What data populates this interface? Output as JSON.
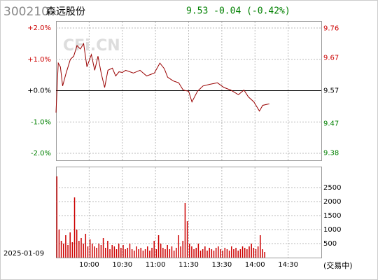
{
  "header": {
    "code": "300210",
    "name": "森远股份",
    "quote": "9.53 -0.04 (-0.42%)"
  },
  "watermark": "CFi.CN",
  "date": "2025-01-09",
  "status": "(交易中)",
  "chart_data": [
    {
      "type": "line",
      "xlim": [
        0,
        240
      ],
      "xticks": [
        30,
        60,
        90,
        120,
        150,
        180,
        210
      ],
      "ylim": [
        -2,
        2
      ],
      "yticks": [
        {
          "value": 2,
          "label": "+2.0%"
        },
        {
          "value": 1,
          "label": "+1.0%"
        },
        {
          "value": 0,
          "label": "+0.0%"
        },
        {
          "value": -1,
          "label": "-1.0%"
        },
        {
          "value": -2,
          "label": "-2.0%"
        }
      ],
      "y2lim": [
        9.3786,
        9.7614
      ],
      "y2ticks": [
        9.76,
        9.67,
        9.57,
        9.47,
        9.38
      ],
      "grid": true,
      "series": [
        {
          "color": "#990000",
          "x": [
            0,
            2,
            4,
            6,
            9,
            13,
            16,
            19,
            22,
            25,
            28,
            32,
            35,
            38,
            41,
            44,
            47,
            51,
            54,
            57,
            60,
            63,
            70,
            76,
            82,
            89,
            94,
            98,
            101,
            106,
            111,
            115,
            120,
            123,
            128,
            133,
            139,
            146,
            152,
            158,
            165,
            170,
            174,
            179,
            184,
            187,
            193
          ],
          "values": [
            -0.7,
            0.88,
            0.76,
            0.15,
            0.54,
            1.0,
            1.1,
            1.44,
            1.33,
            1.5,
            0.76,
            1.15,
            0.65,
            1.1,
            0.54,
            0.1,
            0.65,
            0.72,
            0.47,
            0.6,
            0.58,
            0.65,
            0.56,
            0.65,
            0.47,
            0.56,
            0.88,
            0.7,
            0.43,
            0.31,
            0.25,
            0.02,
            -0.02,
            -0.36,
            -0.02,
            0.15,
            0.2,
            0.25,
            0.1,
            0.02,
            -0.13,
            0.02,
            -0.2,
            -0.36,
            -0.65,
            -0.47,
            -0.42
          ]
        }
      ]
    },
    {
      "type": "bar",
      "xlim": [
        0,
        240
      ],
      "xticks": [
        {
          "value": 30,
          "label": "10:00"
        },
        {
          "value": 60,
          "label": "10:30"
        },
        {
          "value": 90,
          "label": "11:00"
        },
        {
          "value": 120,
          "label": "11:30"
        },
        {
          "value": 150,
          "label": "13:30"
        },
        {
          "value": 180,
          "label": "14:00"
        },
        {
          "value": 210,
          "label": "14:30"
        }
      ],
      "ylim": [
        0,
        3200
      ],
      "yticks": [
        2500,
        2000,
        1500,
        1000,
        500
      ],
      "grid": true,
      "series": [
        {
          "color": "#cc0000",
          "x": [
            0,
            2,
            4,
            6,
            8,
            10,
            12,
            14,
            16,
            18,
            20,
            22,
            24,
            26,
            28,
            30,
            32,
            34,
            36,
            38,
            40,
            42,
            44,
            46,
            48,
            50,
            52,
            54,
            56,
            58,
            60,
            62,
            64,
            66,
            68,
            70,
            72,
            74,
            76,
            78,
            80,
            82,
            84,
            86,
            88,
            90,
            92,
            94,
            96,
            98,
            100,
            102,
            104,
            106,
            108,
            110,
            112,
            114,
            116,
            118,
            120,
            122,
            124,
            126,
            128,
            130,
            132,
            134,
            136,
            138,
            140,
            142,
            144,
            146,
            148,
            150,
            152,
            154,
            156,
            158,
            160,
            162,
            164,
            166,
            168,
            170,
            172,
            174,
            176,
            178,
            180,
            182,
            184,
            186,
            188
          ],
          "values": [
            2900,
            1000,
            600,
            500,
            800,
            450,
            900,
            550,
            2150,
            1000,
            600,
            700,
            500,
            850,
            400,
            650,
            500,
            400,
            350,
            500,
            450,
            700,
            350,
            600,
            300,
            450,
            400,
            300,
            500,
            350,
            450,
            300,
            350,
            500,
            300,
            250,
            400,
            300,
            350,
            250,
            300,
            400,
            250,
            350,
            600,
            300,
            800,
            500,
            350,
            300,
            450,
            300,
            400,
            250,
            350,
            800,
            400,
            600,
            1950,
            1300,
            500,
            400,
            300,
            350,
            500,
            250,
            300,
            400,
            250,
            350,
            300,
            250,
            350,
            400,
            300,
            250,
            350,
            300,
            250,
            400,
            300,
            350,
            250,
            300,
            400,
            350,
            300,
            400,
            500,
            350,
            300,
            400,
            800,
            300,
            200
          ]
        }
      ]
    }
  ]
}
